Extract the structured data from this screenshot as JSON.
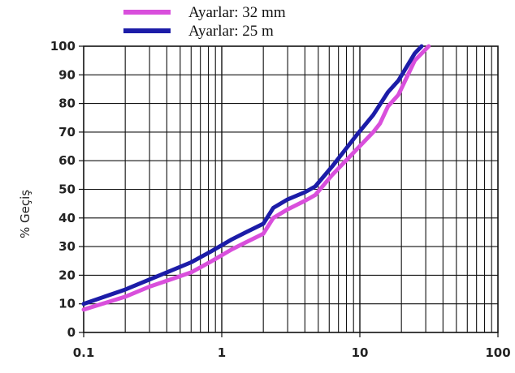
{
  "chart_data": {
    "type": "line",
    "xscale": "log",
    "xlim": [
      0.1,
      100
    ],
    "ylim": [
      0,
      100
    ],
    "ylabel": "% Geçiş",
    "xlabel": "",
    "grid": true,
    "legend_placement": "top-left",
    "x_ticks": [
      "0.1",
      "1",
      "10",
      "100"
    ],
    "y_ticks": [
      "0",
      "10",
      "20",
      "30",
      "40",
      "50",
      "60",
      "70",
      "80",
      "90",
      "100"
    ],
    "series": [
      {
        "name": "Ayarlar: 32 mm",
        "color": "#d94fdc",
        "points": [
          [
            0.1,
            8
          ],
          [
            0.2,
            12.5
          ],
          [
            0.3,
            16
          ],
          [
            0.425,
            18.5
          ],
          [
            0.6,
            21
          ],
          [
            0.85,
            25
          ],
          [
            1.18,
            29
          ],
          [
            1.5,
            31.5
          ],
          [
            2.0,
            34.5
          ],
          [
            2.36,
            40
          ],
          [
            3.0,
            43
          ],
          [
            4.0,
            46
          ],
          [
            4.75,
            48
          ],
          [
            6.3,
            55
          ],
          [
            9.5,
            64
          ],
          [
            12.5,
            70
          ],
          [
            14,
            73
          ],
          [
            16,
            79
          ],
          [
            19,
            83
          ],
          [
            25,
            95
          ],
          [
            31.5,
            100
          ]
        ]
      },
      {
        "name": "Ayarlar: 25 m",
        "color": "#1c1ca8",
        "points": [
          [
            0.1,
            10
          ],
          [
            0.2,
            15
          ],
          [
            0.3,
            18.5
          ],
          [
            0.425,
            21.5
          ],
          [
            0.6,
            24.5
          ],
          [
            0.85,
            28.5
          ],
          [
            1.18,
            32.5
          ],
          [
            1.5,
            35
          ],
          [
            2.0,
            38
          ],
          [
            2.36,
            43.5
          ],
          [
            3.0,
            46.5
          ],
          [
            4.0,
            49
          ],
          [
            4.75,
            51
          ],
          [
            6.3,
            58
          ],
          [
            9.5,
            69
          ],
          [
            12.5,
            76
          ],
          [
            16,
            84
          ],
          [
            19,
            88
          ],
          [
            25,
            97.5
          ],
          [
            28,
            100
          ]
        ]
      }
    ]
  }
}
